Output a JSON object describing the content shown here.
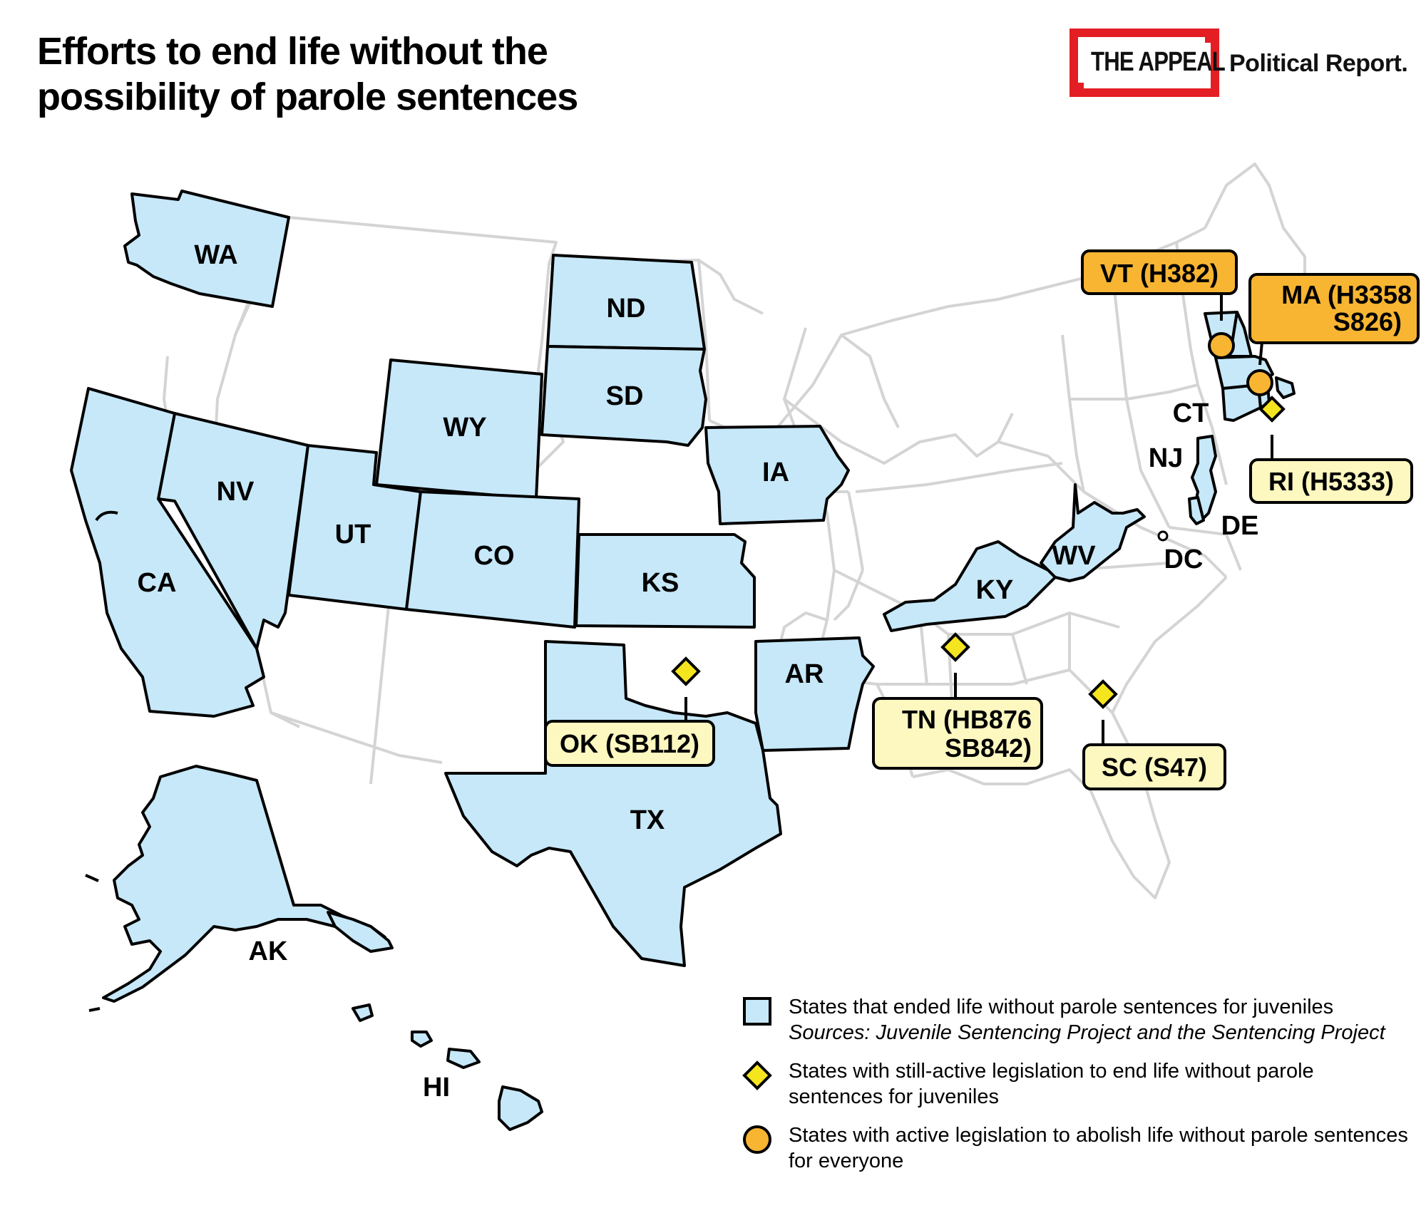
{
  "title_line1": "Efforts to end life without the",
  "title_line2": "possibility of parole sentences",
  "brand": {
    "logo": "THE APPEAL",
    "sub": "Political Report.",
    "logo_color": "#e31e24"
  },
  "colors": {
    "ended": "#c6e8f9",
    "active_juvenile": "#f5e51f",
    "active_all": "#f7b531",
    "callout_yellow": "#fdf7c0",
    "callout_orange": "#f7b531",
    "outline": "#000000",
    "background_states": "#d4d4d4"
  },
  "states": [
    "WA",
    "ND",
    "SD",
    "WY",
    "NV",
    "UT",
    "CO",
    "KS",
    "IA",
    "CA",
    "AR",
    "TX",
    "KY",
    "WV",
    "AK",
    "HI",
    "CT",
    "NJ",
    "DE",
    "DC"
  ],
  "callouts": [
    {
      "lines": [
        "VT (H382)"
      ],
      "marker": "circle"
    },
    {
      "lines": [
        "MA (H3358",
        "S826)"
      ],
      "marker": "circle"
    },
    {
      "lines": [
        "RI (H5333)"
      ],
      "marker": "diamond"
    },
    {
      "lines": [
        "OK (SB112)"
      ],
      "marker": "diamond"
    },
    {
      "lines": [
        "TN (HB876",
        "SB842)"
      ],
      "marker": "diamond"
    },
    {
      "lines": [
        "SC (S47)"
      ],
      "marker": "diamond"
    }
  ],
  "legend": [
    {
      "text": "States that ended life without parole sentences for juveniles",
      "source": "Sources: Juvenile Sentencing Project and the Sentencing Project",
      "symbol": "square"
    },
    {
      "text": "States with still-active legislation to end life without parole sentences for juveniles",
      "symbol": "diamond"
    },
    {
      "text": "States with active legislation to abolish life without parole sentences for everyone",
      "symbol": "circle"
    }
  ]
}
